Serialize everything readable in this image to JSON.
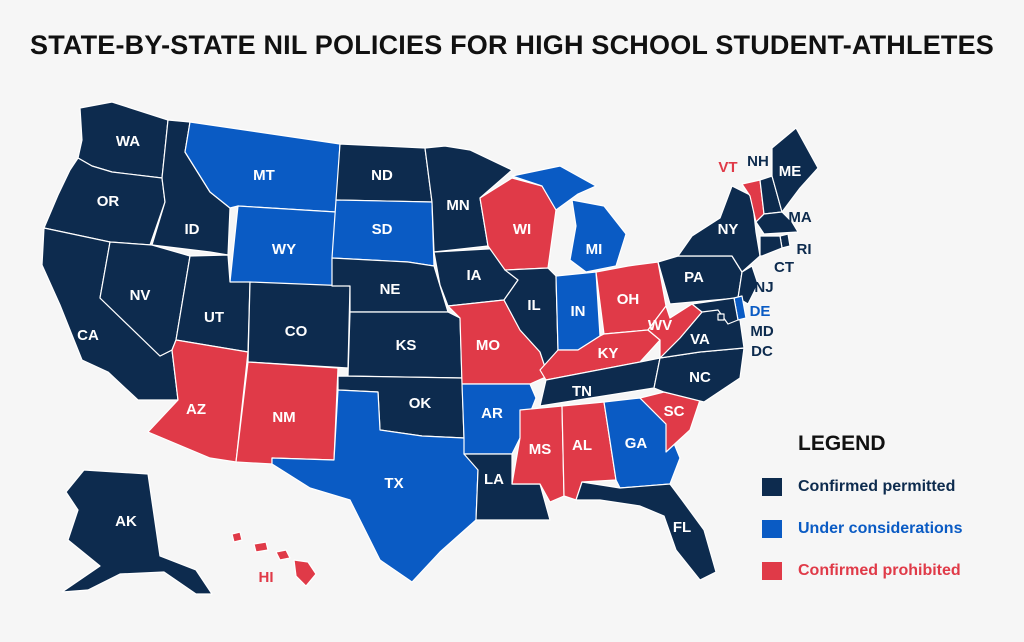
{
  "title": "STATE-BY-STATE NIL POLICIES FOR HIGH SCHOOL STUDENT-ATHLETES",
  "colors": {
    "permitted": "#0d2b4e",
    "considering": "#0a5bc4",
    "prohibited": "#e03a48"
  },
  "legend": {
    "title": "LEGEND",
    "items": [
      {
        "key": "permitted",
        "label": "Confirmed permitted"
      },
      {
        "key": "considering",
        "label": "Under considerations"
      },
      {
        "key": "prohibited",
        "label": "Confirmed prohibited"
      }
    ]
  },
  "states": [
    {
      "id": "WA",
      "status": "permitted"
    },
    {
      "id": "OR",
      "status": "permitted"
    },
    {
      "id": "CA",
      "status": "permitted"
    },
    {
      "id": "ID",
      "status": "permitted"
    },
    {
      "id": "NV",
      "status": "permitted"
    },
    {
      "id": "MT",
      "status": "considering"
    },
    {
      "id": "WY",
      "status": "considering"
    },
    {
      "id": "UT",
      "status": "permitted"
    },
    {
      "id": "AZ",
      "status": "prohibited"
    },
    {
      "id": "CO",
      "status": "permitted"
    },
    {
      "id": "NM",
      "status": "prohibited"
    },
    {
      "id": "ND",
      "status": "permitted"
    },
    {
      "id": "SD",
      "status": "considering"
    },
    {
      "id": "NE",
      "status": "permitted"
    },
    {
      "id": "KS",
      "status": "permitted"
    },
    {
      "id": "OK",
      "status": "permitted"
    },
    {
      "id": "TX",
      "status": "considering"
    },
    {
      "id": "MN",
      "status": "permitted"
    },
    {
      "id": "IA",
      "status": "permitted"
    },
    {
      "id": "MO",
      "status": "prohibited"
    },
    {
      "id": "AR",
      "status": "considering"
    },
    {
      "id": "LA",
      "status": "permitted"
    },
    {
      "id": "WI",
      "status": "prohibited"
    },
    {
      "id": "IL",
      "status": "permitted"
    },
    {
      "id": "MI",
      "status": "considering"
    },
    {
      "id": "IN",
      "status": "considering"
    },
    {
      "id": "OH",
      "status": "prohibited"
    },
    {
      "id": "KY",
      "status": "prohibited"
    },
    {
      "id": "TN",
      "status": "permitted"
    },
    {
      "id": "MS",
      "status": "prohibited"
    },
    {
      "id": "AL",
      "status": "prohibited"
    },
    {
      "id": "GA",
      "status": "considering"
    },
    {
      "id": "FL",
      "status": "permitted"
    },
    {
      "id": "SC",
      "status": "prohibited"
    },
    {
      "id": "NC",
      "status": "permitted"
    },
    {
      "id": "VA",
      "status": "permitted"
    },
    {
      "id": "WV",
      "status": "prohibited"
    },
    {
      "id": "PA",
      "status": "permitted"
    },
    {
      "id": "NY",
      "status": "permitted"
    },
    {
      "id": "VT",
      "status": "prohibited"
    },
    {
      "id": "NH",
      "status": "permitted"
    },
    {
      "id": "ME",
      "status": "permitted"
    },
    {
      "id": "MA",
      "status": "permitted"
    },
    {
      "id": "RI",
      "status": "permitted"
    },
    {
      "id": "CT",
      "status": "permitted"
    },
    {
      "id": "NJ",
      "status": "permitted"
    },
    {
      "id": "DE",
      "status": "considering"
    },
    {
      "id": "MD",
      "status": "permitted"
    },
    {
      "id": "DC",
      "status": "permitted"
    },
    {
      "id": "AK",
      "status": "permitted"
    },
    {
      "id": "HI",
      "status": "prohibited"
    }
  ]
}
